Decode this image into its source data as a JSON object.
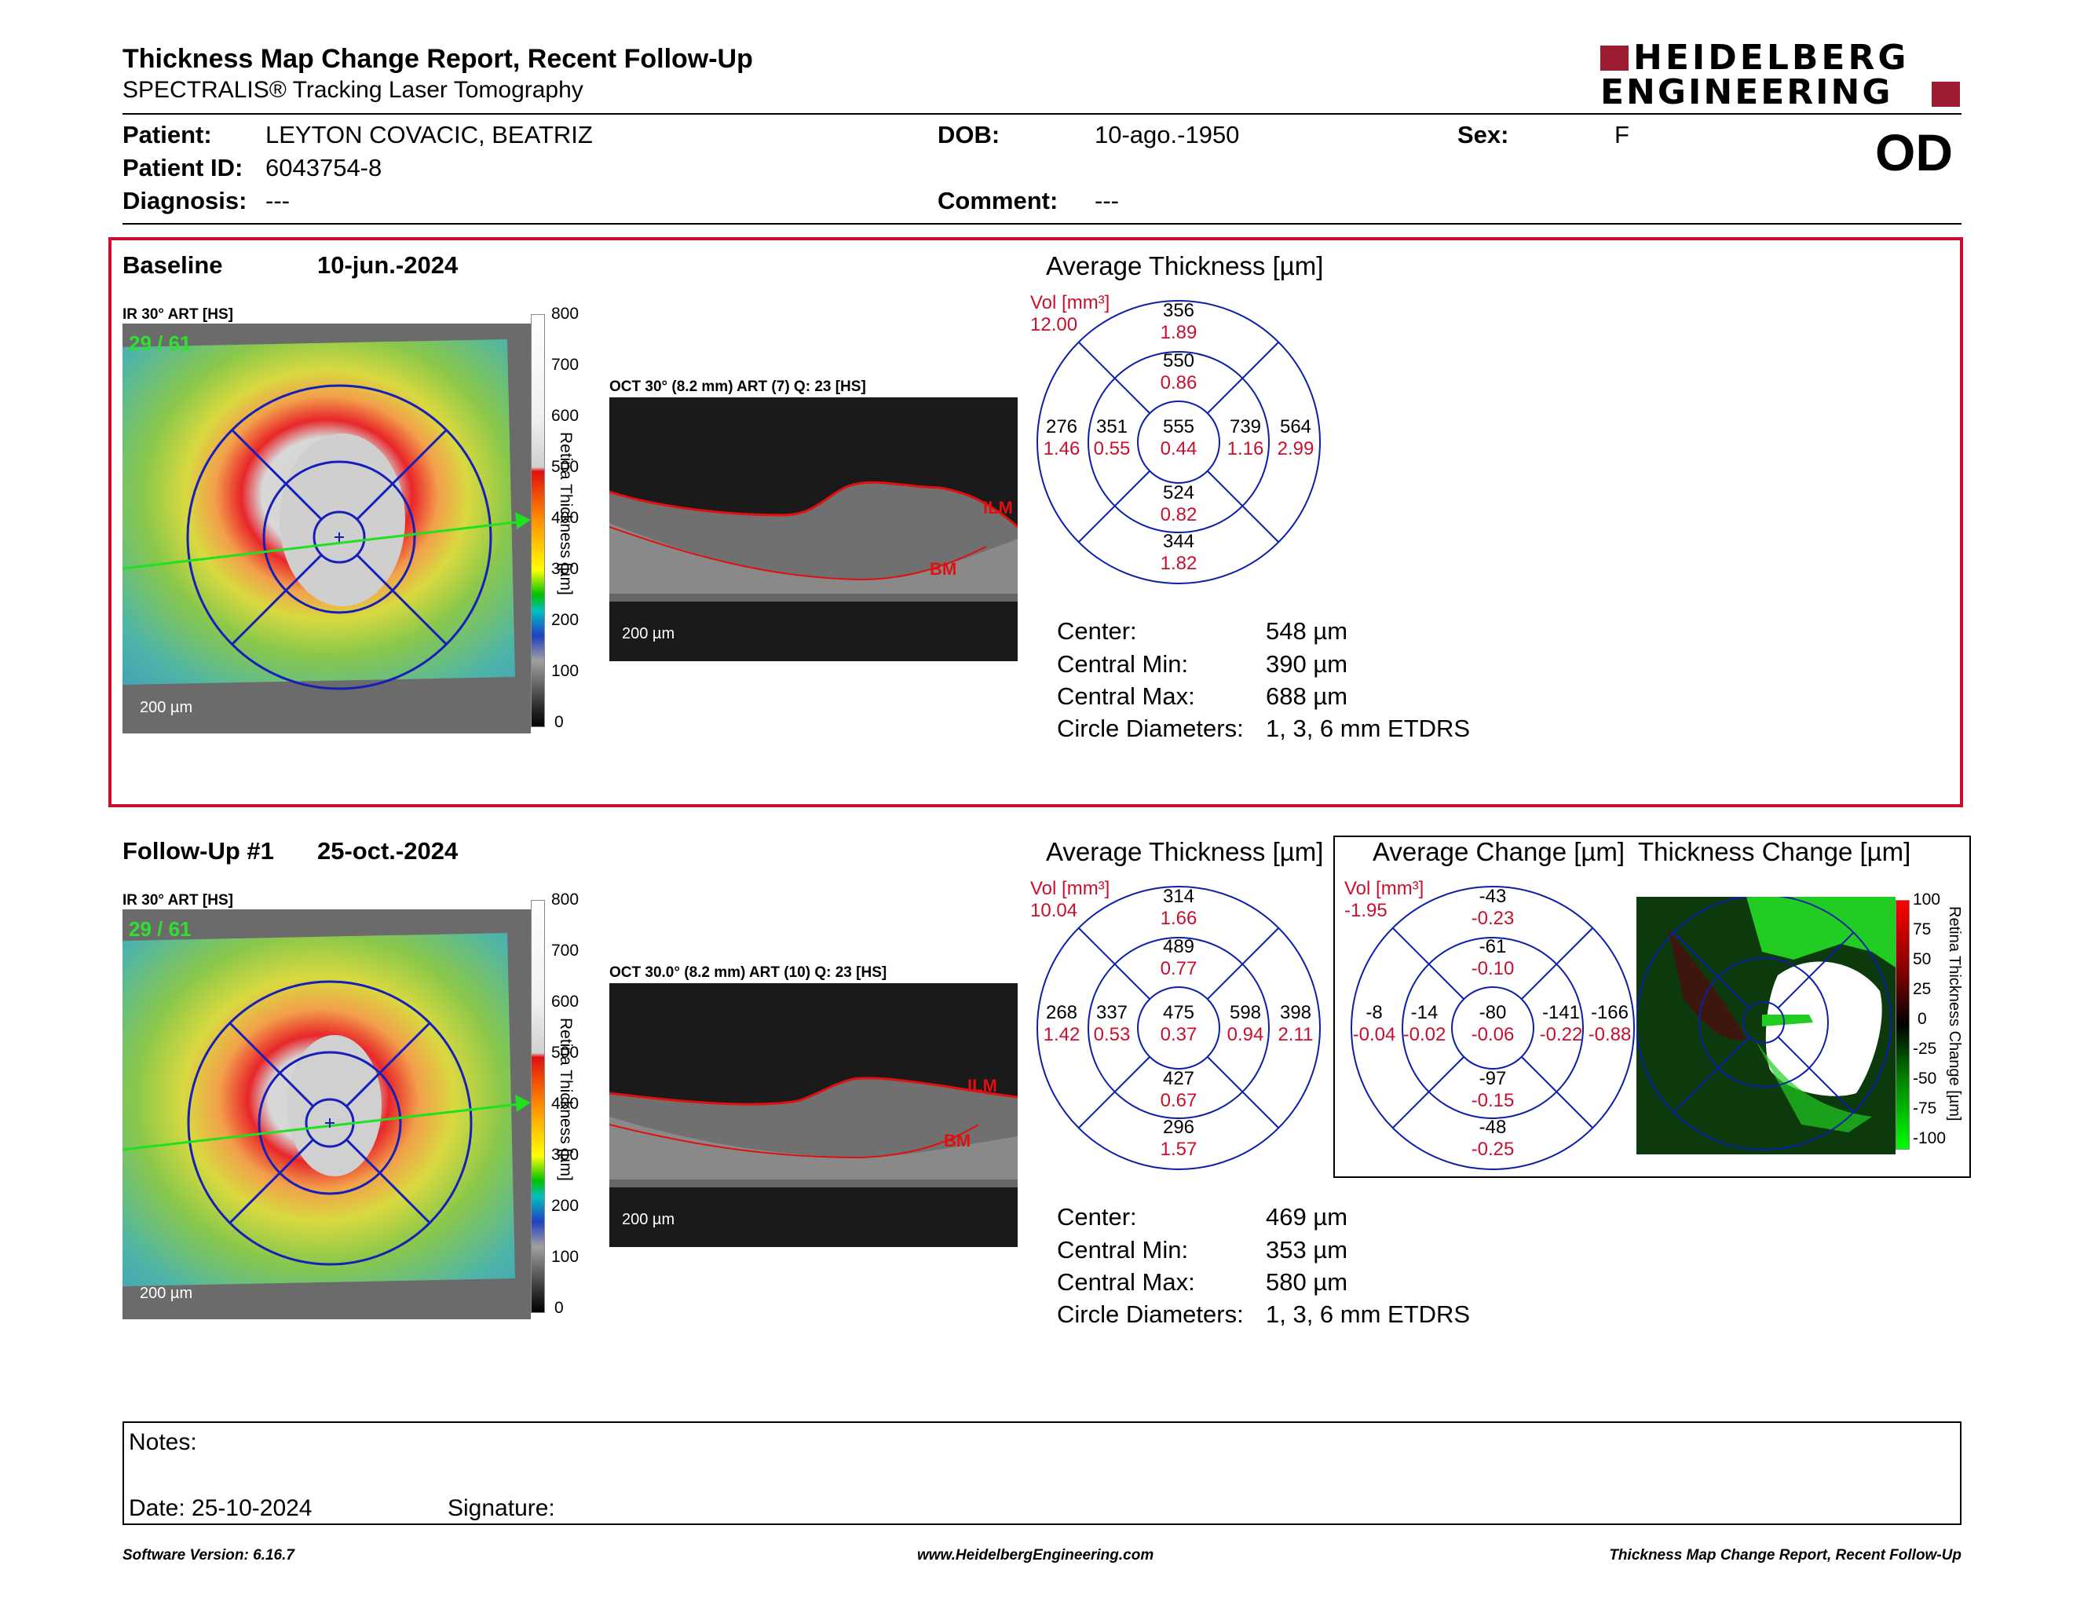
{
  "header": {
    "title": "Thickness Map Change Report, Recent Follow-Up",
    "subtitle": "SPECTRALIS® Tracking Laser Tomography",
    "logo_line1": "HEIDELBERG",
    "logo_line2": "ENGINEERING",
    "eye": "OD"
  },
  "patient": {
    "patient_label": "Patient:",
    "patient_value": "LEYTON COVACIC, BEATRIZ",
    "id_label": "Patient ID:",
    "id_value": "6043754-8",
    "diagnosis_label": "Diagnosis:",
    "diagnosis_value": "---",
    "dob_label": "DOB:",
    "dob_value": "10-ago.-1950",
    "comment_label": "Comment:",
    "comment_value": "---",
    "sex_label": "Sex:",
    "sex_value": "F"
  },
  "baseline": {
    "label": "Baseline",
    "date": "10-jun.-2024",
    "ir_label": "IR 30° ART [HS]",
    "frame_counter": "29 / 61",
    "ir_scale": "200 µm",
    "oct_label": "OCT 30° (8.2 mm) ART (7) Q: 23 [HS]",
    "oct_scale": "200 µm",
    "ilm": "ILM",
    "bm": "BM",
    "colorbar_ticks": [
      "800",
      "700",
      "600",
      "500",
      "400",
      "300",
      "200",
      "100",
      "0"
    ],
    "colorbar_title": "Retina Thickness [µm]",
    "avg_title": "Average Thickness [µm]",
    "vol_label": "Vol [mm³]",
    "vol_value": "12.00",
    "etdrs": {
      "outer_sup": {
        "t": "356",
        "v": "1.89"
      },
      "inner_sup": {
        "t": "550",
        "v": "0.86"
      },
      "center": {
        "t": "555",
        "v": "0.44"
      },
      "inner_inf": {
        "t": "524",
        "v": "0.82"
      },
      "outer_inf": {
        "t": "344",
        "v": "1.82"
      },
      "outer_temp": {
        "t": "276",
        "v": "1.46"
      },
      "inner_temp": {
        "t": "351",
        "v": "0.55"
      },
      "inner_nas": {
        "t": "739",
        "v": "1.16"
      },
      "outer_nas": {
        "t": "564",
        "v": "2.99"
      }
    },
    "stats": [
      {
        "k": "Center:",
        "v": "548 µm"
      },
      {
        "k": "Central Min:",
        "v": "390 µm"
      },
      {
        "k": "Central Max:",
        "v": "688 µm"
      },
      {
        "k": "Circle Diameters:",
        "v": "1, 3, 6 mm ETDRS"
      }
    ]
  },
  "followup": {
    "label": "Follow-Up #1",
    "date": "25-oct.-2024",
    "ir_label": "IR 30° ART [HS]",
    "frame_counter": "29 / 61",
    "ir_scale": "200 µm",
    "oct_label": "OCT 30.0° (8.2 mm) ART (10) Q: 23 [HS]",
    "oct_scale": "200 µm",
    "ilm": "ILM",
    "bm": "BM",
    "colorbar_ticks": [
      "800",
      "700",
      "600",
      "500",
      "400",
      "300",
      "200",
      "100",
      "0"
    ],
    "colorbar_title": "Retina Thickness [µm]",
    "avg_title": "Average Thickness [µm]",
    "vol_label": "Vol [mm³]",
    "vol_value": "10.04",
    "etdrs": {
      "outer_sup": {
        "t": "314",
        "v": "1.66"
      },
      "inner_sup": {
        "t": "489",
        "v": "0.77"
      },
      "center": {
        "t": "475",
        "v": "0.37"
      },
      "inner_inf": {
        "t": "427",
        "v": "0.67"
      },
      "outer_inf": {
        "t": "296",
        "v": "1.57"
      },
      "outer_temp": {
        "t": "268",
        "v": "1.42"
      },
      "inner_temp": {
        "t": "337",
        "v": "0.53"
      },
      "inner_nas": {
        "t": "598",
        "v": "0.94"
      },
      "outer_nas": {
        "t": "398",
        "v": "2.11"
      }
    },
    "stats": [
      {
        "k": "Center:",
        "v": "469 µm"
      },
      {
        "k": "Central Min:",
        "v": "353 µm"
      },
      {
        "k": "Central Max:",
        "v": "580 µm"
      },
      {
        "k": "Circle Diameters:",
        "v": "1, 3, 6 mm ETDRS"
      }
    ],
    "change": {
      "avg_title": "Average Change [µm]",
      "map_title": "Thickness Change [µm]",
      "vol_label": "Vol [mm³]",
      "vol_value": "-1.95",
      "etdrs": {
        "outer_sup": {
          "t": "-43",
          "v": "-0.23"
        },
        "inner_sup": {
          "t": "-61",
          "v": "-0.10"
        },
        "center": {
          "t": "-80",
          "v": "-0.06"
        },
        "inner_inf": {
          "t": "-97",
          "v": "-0.15"
        },
        "outer_inf": {
          "t": "-48",
          "v": "-0.25"
        },
        "outer_temp": {
          "t": "-8",
          "v": "-0.04"
        },
        "inner_temp": {
          "t": "-14",
          "v": "-0.02"
        },
        "inner_nas": {
          "t": "-141",
          "v": "-0.22"
        },
        "outer_nas": {
          "t": "-166",
          "v": "-0.88"
        }
      },
      "colorbar_ticks": [
        "100",
        "75",
        "50",
        "25",
        "0",
        "-25",
        "-50",
        "-75",
        "-100"
      ],
      "colorbar_title": "Retina Thickness Change [µm]"
    }
  },
  "notes": {
    "notes_label": "Notes:",
    "date_label": "Date: 25-10-2024",
    "signature_label": "Signature:"
  },
  "footer": {
    "software": "Software Version: 6.16.7",
    "website": "www.HeidelbergEngineering.com",
    "report": "Thickness Map Change Report, Recent Follow-Up"
  },
  "colors": {
    "brand_red": "#9b1b30",
    "highlight_red": "#c8102e",
    "etdrs_blue": "#0b1fa8"
  }
}
